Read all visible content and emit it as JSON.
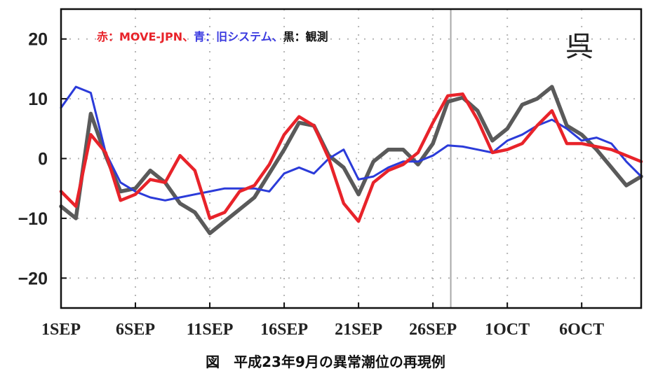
{
  "chart_data": {
    "type": "line",
    "legend_text": [
      {
        "text": "赤：MOVE-JPN、",
        "color": "#e8232a"
      },
      {
        "text": "青：旧システム、",
        "color": "#3a3ae0"
      },
      {
        "text": "黒：観測",
        "color": "#111111"
      }
    ],
    "station": "呉",
    "caption": "図　平成23年9月の異常潮位の再現例",
    "x_tick_labels": [
      "1SEP",
      "6SEP",
      "11SEP",
      "16SEP",
      "21SEP",
      "26SEP",
      "1OCT",
      "6OCT"
    ],
    "x_tick_positions": [
      1,
      6,
      11,
      16,
      21,
      26,
      31,
      36
    ],
    "x_range": [
      1,
      40
    ],
    "y_ticks": [
      20,
      10,
      0,
      -10,
      -20
    ],
    "ylim": [
      -25,
      25
    ],
    "grid": true,
    "marker_line_x": 27.2,
    "series": [
      {
        "color": "#5a5a5a",
        "x": [
          1,
          2,
          3,
          4,
          5,
          6,
          7,
          8,
          9,
          10,
          11,
          12,
          13,
          14,
          15,
          16,
          17,
          18,
          19,
          20,
          21,
          22,
          23,
          24,
          25,
          26,
          27,
          28,
          29,
          30,
          31,
          32,
          33,
          34,
          35,
          36,
          37,
          38,
          39,
          40
        ],
        "values": [
          -8,
          -10,
          7.5,
          0.5,
          -5.5,
          -5,
          -2,
          -4,
          -7.5,
          -9,
          -12.5,
          -10.5,
          -8.5,
          -6.5,
          -2.5,
          1.5,
          6,
          5.5,
          0.5,
          -1.5,
          -6,
          -0.5,
          1.5,
          1.5,
          -1,
          2.5,
          9.5,
          10.2,
          8,
          3,
          5,
          9,
          10,
          12,
          5.5,
          4,
          1.5,
          -1.5,
          -4.5,
          -3
        ]
      },
      {
        "color": "#2b3bd9",
        "x": [
          1,
          2,
          3,
          4,
          5,
          6,
          7,
          8,
          9,
          10,
          11,
          12,
          13,
          14,
          15,
          16,
          17,
          18,
          19,
          20,
          21,
          22,
          23,
          24,
          25,
          26,
          27,
          28,
          29,
          30,
          31,
          32,
          33,
          34,
          35,
          36,
          37,
          38,
          39,
          40
        ],
        "values": [
          8.5,
          12,
          11,
          1,
          -4,
          -5.5,
          -6.5,
          -7,
          -6.5,
          -6,
          -5.5,
          -5,
          -5,
          -5,
          -5.5,
          -2.5,
          -1.5,
          -2.5,
          0,
          1.5,
          -3.5,
          -3,
          -1.5,
          -0.5,
          -0.5,
          0.5,
          2.2,
          2,
          1.5,
          1,
          3,
          4,
          5.5,
          6.5,
          5,
          3,
          3.5,
          2.5,
          -0.5,
          -3
        ]
      },
      {
        "color": "#e8232a",
        "x": [
          1,
          2,
          3,
          4,
          5,
          6,
          7,
          8,
          9,
          10,
          11,
          12,
          13,
          14,
          15,
          16,
          17,
          18,
          19,
          20,
          21,
          22,
          23,
          24,
          25,
          26,
          27,
          28,
          29,
          30,
          31,
          32,
          33,
          34,
          35,
          36,
          37,
          38,
          39,
          40
        ],
        "values": [
          -5.5,
          -8,
          4,
          1,
          -7,
          -6,
          -3.5,
          -4,
          0.5,
          -2,
          -10,
          -9,
          -5.5,
          -4.5,
          -1,
          4,
          7,
          5.5,
          0,
          -7.5,
          -10.5,
          -4,
          -2,
          -1,
          1,
          6,
          10.5,
          10.8,
          6.5,
          1,
          1.5,
          2.5,
          5.5,
          8,
          2.5,
          2.5,
          2,
          1.5,
          0.5,
          -0.5
        ]
      }
    ]
  }
}
